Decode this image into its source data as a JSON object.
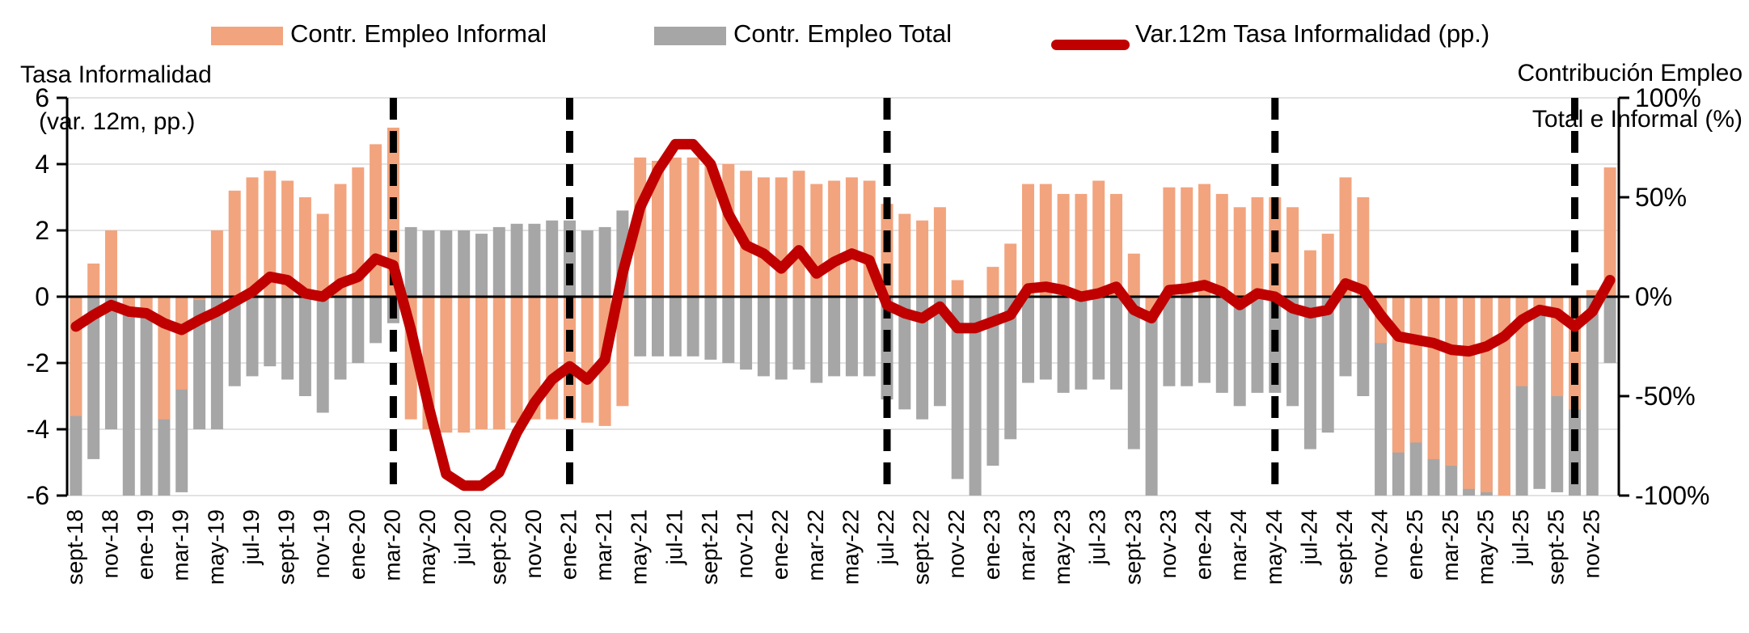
{
  "legend": {
    "items": [
      {
        "label": "Contr. Empleo Informal",
        "color": "#F2A47E",
        "marker": "square"
      },
      {
        "label": "Contr. Empleo Total",
        "color": "#A6A6A6",
        "marker": "square"
      },
      {
        "label": "Var.12m Tasa Informalidad (pp.)",
        "color": "#C00000",
        "marker": "line"
      }
    ]
  },
  "left_axis_title": {
    "line1": "Tasa Informalidad",
    "line2": "(var. 12m, pp.)"
  },
  "right_axis_title": {
    "line1": "Contribución Empleo",
    "line2": "Total e Informal (%)"
  },
  "chart_data": {
    "type": "bar",
    "subtype": "combo-dual-axis",
    "n_months": 88,
    "first_month": "sept-18",
    "last_month": "dec-25",
    "tick_every_months": 2,
    "tick_labels": [
      "sept-18",
      "nov-18",
      "ene-19",
      "mar-19",
      "may-19",
      "jul-19",
      "sept-19",
      "nov-19",
      "ene-20",
      "mar-20",
      "may-20",
      "jul-20",
      "sept-20",
      "nov-20",
      "ene-21",
      "mar-21",
      "may-21",
      "jul-21",
      "sept-21",
      "nov-21",
      "ene-22",
      "mar-22",
      "may-22",
      "jul-22",
      "sept-22",
      "nov-22",
      "ene-23",
      "mar-23",
      "may-23",
      "jul-23",
      "sept-23",
      "nov-23",
      "ene-24",
      "mar-24",
      "may-24",
      "jul-24",
      "sept-24",
      "nov-24",
      "ene-25",
      "mar-25",
      "may-25",
      "jul-25",
      "sept-25",
      "nov-25"
    ],
    "left_axis": {
      "ticks": [
        "6",
        "4",
        "2",
        "0",
        "-2",
        "-4",
        "-6"
      ],
      "ylim": [
        -6,
        6
      ],
      "grid": true
    },
    "right_axis": {
      "ticks": [
        "100%",
        "50%",
        "0%",
        "-50%",
        "-100%"
      ],
      "ylim_pct": [
        -100,
        100
      ]
    },
    "series": [
      {
        "name": "Contr. Empleo Informal",
        "type": "bar",
        "axis": "right",
        "color": "#F2A47E",
        "values": [
          -3.6,
          1.0,
          2.0,
          -0.4,
          -0.6,
          -3.7,
          -2.8,
          -0.1,
          2.0,
          3.2,
          3.6,
          3.8,
          3.5,
          3.0,
          2.5,
          3.4,
          3.9,
          4.6,
          5.1,
          -3.7,
          -4.0,
          -4.1,
          -4.1,
          -4.0,
          -4.0,
          -3.8,
          -3.7,
          -3.7,
          -3.7,
          -3.8,
          -3.9,
          -3.3,
          4.2,
          4.1,
          4.2,
          4.2,
          4.0,
          4.0,
          3.8,
          3.6,
          3.6,
          3.8,
          3.4,
          3.5,
          3.6,
          3.5,
          2.8,
          2.5,
          2.3,
          2.7,
          0.5,
          0.0,
          0.9,
          1.6,
          3.4,
          3.4,
          3.1,
          3.1,
          3.5,
          3.1,
          1.3,
          -0.5,
          3.3,
          3.3,
          3.4,
          3.1,
          2.7,
          3.0,
          3.0,
          2.7,
          1.4,
          1.9,
          3.6,
          3.0,
          -1.4,
          -4.7,
          -4.4,
          -4.9,
          -5.1,
          -5.8,
          -5.9,
          -6.0,
          -2.7,
          -0.5,
          -3.0,
          -3.4,
          0.2,
          3.9
        ]
      },
      {
        "name": "Contr. Empleo Total",
        "type": "bar",
        "axis": "right",
        "color": "#A6A6A6",
        "values": [
          -6.0,
          -4.9,
          -4.0,
          -6.0,
          -6.0,
          -6.0,
          -5.9,
          -4.0,
          -4.0,
          -2.7,
          -2.4,
          -2.1,
          -2.5,
          -3.0,
          -3.5,
          -2.5,
          -2.0,
          -1.4,
          -0.8,
          2.1,
          2.0,
          2.0,
          2.0,
          1.9,
          2.1,
          2.2,
          2.2,
          2.3,
          2.3,
          2.0,
          2.1,
          2.6,
          -1.8,
          -1.8,
          -1.8,
          -1.8,
          -1.9,
          -2.0,
          -2.2,
          -2.4,
          -2.5,
          -2.2,
          -2.6,
          -2.4,
          -2.4,
          -2.4,
          -3.1,
          -3.4,
          -3.7,
          -3.3,
          -5.5,
          -6.0,
          -5.1,
          -4.3,
          -2.6,
          -2.5,
          -2.9,
          -2.8,
          -2.5,
          -2.8,
          -4.6,
          -6.0,
          -2.7,
          -2.7,
          -2.6,
          -2.9,
          -3.3,
          -2.9,
          -2.9,
          -3.3,
          -4.6,
          -4.1,
          -2.4,
          -3.0,
          -6.0,
          -6.0,
          -6.0,
          -6.0,
          -6.0,
          -6.0,
          -6.0,
          -6.0,
          -6.0,
          -5.8,
          -5.9,
          -6.0,
          -6.0,
          -2.0
        ]
      },
      {
        "name": "Var.12m Tasa Informalidad (pp.)",
        "type": "line",
        "axis": "left",
        "color": "#C00000",
        "values": [
          -0.9,
          -0.55,
          -0.25,
          -0.45,
          -0.5,
          -0.8,
          -1.0,
          -0.7,
          -0.45,
          -0.15,
          0.15,
          0.6,
          0.5,
          0.1,
          0.0,
          0.4,
          0.6,
          1.15,
          0.95,
          -1.0,
          -3.3,
          -5.35,
          -5.7,
          -5.7,
          -5.3,
          -4.1,
          -3.2,
          -2.5,
          -2.1,
          -2.5,
          -1.9,
          0.7,
          2.7,
          3.8,
          4.6,
          4.6,
          4.0,
          2.5,
          1.55,
          1.3,
          0.85,
          1.4,
          0.7,
          1.05,
          1.3,
          1.1,
          -0.25,
          -0.5,
          -0.65,
          -0.3,
          -0.95,
          -0.95,
          -0.75,
          -0.55,
          0.25,
          0.3,
          0.2,
          0.0,
          0.1,
          0.3,
          -0.4,
          -0.65,
          0.2,
          0.25,
          0.35,
          0.15,
          -0.25,
          0.1,
          0.0,
          -0.35,
          -0.5,
          -0.4,
          0.4,
          0.2,
          -0.55,
          -1.2,
          -1.3,
          -1.4,
          -1.6,
          -1.65,
          -1.5,
          -1.2,
          -0.7,
          -0.4,
          -0.5,
          -0.9,
          -0.45,
          0.5
        ]
      }
    ],
    "event_lines": {
      "color": "#000000",
      "style": "dashed",
      "month_indices": [
        18,
        28,
        46,
        68,
        85
      ],
      "months": [
        "mar-20",
        "ene-21",
        "jul-22",
        "may-24",
        "oct-25"
      ]
    },
    "note": "right axis percent maps 100% = 6 pp on left axis; legend position top"
  }
}
